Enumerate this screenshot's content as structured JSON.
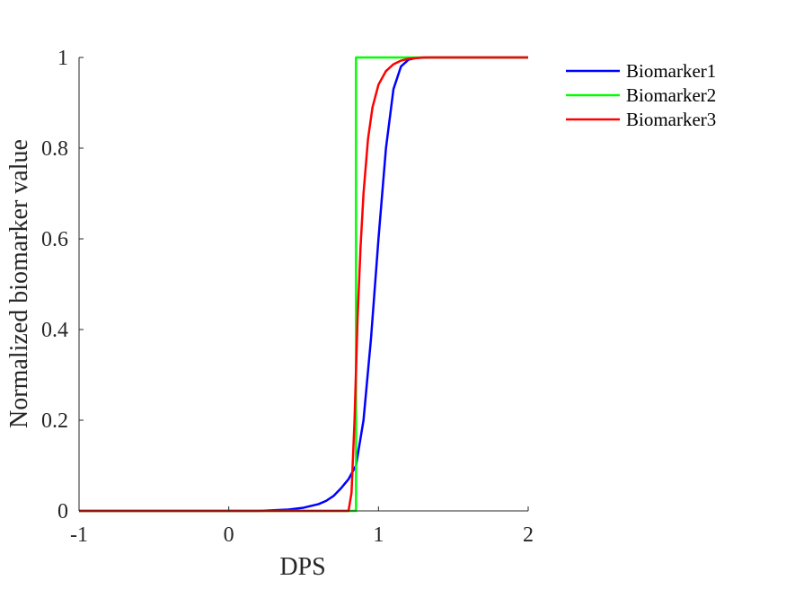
{
  "chart_data": {
    "type": "line",
    "title": "",
    "xlabel": "DPS",
    "ylabel": "Normalized biomarker value",
    "xlim": [
      -1,
      2
    ],
    "ylim": [
      0,
      1
    ],
    "xticks": [
      -1,
      0,
      1,
      2
    ],
    "yticks": [
      0,
      0.2,
      0.4,
      0.6,
      0.8,
      1
    ],
    "xtick_labels": [
      "-1",
      "0",
      "1",
      "2"
    ],
    "ytick_labels": [
      "0",
      "0.2",
      "0.4",
      "0.6",
      "0.8",
      "1"
    ],
    "grid": false,
    "legend_placement": "outside-top-right",
    "series": [
      {
        "name": "Biomarker1",
        "color": "#0000ff",
        "x": [
          -1.0,
          0.2,
          0.4,
          0.5,
          0.6,
          0.65,
          0.7,
          0.75,
          0.8,
          0.85,
          0.9,
          0.95,
          1.0,
          1.05,
          1.1,
          1.15,
          1.2,
          1.25,
          1.35,
          1.5,
          2.0
        ],
        "y": [
          0,
          0.0,
          0.003,
          0.007,
          0.015,
          0.022,
          0.033,
          0.05,
          0.07,
          0.1,
          0.2,
          0.38,
          0.6,
          0.8,
          0.93,
          0.98,
          0.995,
          0.999,
          1.0,
          1.0,
          1.0
        ]
      },
      {
        "name": "Biomarker2",
        "color": "#00ff00",
        "x": [
          -1.0,
          0.85,
          0.85,
          2.0
        ],
        "y": [
          0,
          0,
          1,
          1
        ]
      },
      {
        "name": "Biomarker3",
        "color": "#ff0000",
        "x": [
          -1.0,
          0.8,
          0.82,
          0.84,
          0.86,
          0.88,
          0.9,
          0.93,
          0.96,
          1.0,
          1.05,
          1.1,
          1.15,
          1.2,
          1.3,
          1.4,
          2.0
        ],
        "y": [
          0,
          0,
          0.04,
          0.2,
          0.42,
          0.58,
          0.7,
          0.82,
          0.89,
          0.94,
          0.97,
          0.985,
          0.993,
          0.997,
          1.0,
          1.0,
          1.0
        ]
      }
    ]
  }
}
